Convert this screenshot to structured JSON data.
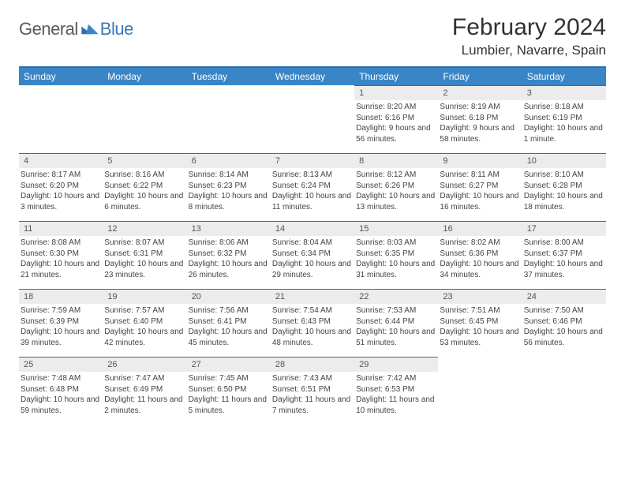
{
  "brand": {
    "part1": "General",
    "part2": "Blue"
  },
  "title": "February 2024",
  "location": "Lumbier, Navarre, Spain",
  "colors": {
    "header_bg": "#3a85c6",
    "header_text": "#ffffff",
    "rule": "#2a6fae",
    "daynum_bg": "#ececec",
    "daynum_text": "#555555",
    "cell_text": "#444444",
    "title_text": "#333333",
    "brand_gray": "#5a5a5a",
    "brand_blue": "#3a78b5"
  },
  "weekdays": [
    "Sunday",
    "Monday",
    "Tuesday",
    "Wednesday",
    "Thursday",
    "Friday",
    "Saturday"
  ],
  "weeks": [
    [
      null,
      null,
      null,
      null,
      {
        "n": "1",
        "sr": "8:20 AM",
        "ss": "6:16 PM",
        "dl": "9 hours and 56 minutes."
      },
      {
        "n": "2",
        "sr": "8:19 AM",
        "ss": "6:18 PM",
        "dl": "9 hours and 58 minutes."
      },
      {
        "n": "3",
        "sr": "8:18 AM",
        "ss": "6:19 PM",
        "dl": "10 hours and 1 minute."
      }
    ],
    [
      {
        "n": "4",
        "sr": "8:17 AM",
        "ss": "6:20 PM",
        "dl": "10 hours and 3 minutes."
      },
      {
        "n": "5",
        "sr": "8:16 AM",
        "ss": "6:22 PM",
        "dl": "10 hours and 6 minutes."
      },
      {
        "n": "6",
        "sr": "8:14 AM",
        "ss": "6:23 PM",
        "dl": "10 hours and 8 minutes."
      },
      {
        "n": "7",
        "sr": "8:13 AM",
        "ss": "6:24 PM",
        "dl": "10 hours and 11 minutes."
      },
      {
        "n": "8",
        "sr": "8:12 AM",
        "ss": "6:26 PM",
        "dl": "10 hours and 13 minutes."
      },
      {
        "n": "9",
        "sr": "8:11 AM",
        "ss": "6:27 PM",
        "dl": "10 hours and 16 minutes."
      },
      {
        "n": "10",
        "sr": "8:10 AM",
        "ss": "6:28 PM",
        "dl": "10 hours and 18 minutes."
      }
    ],
    [
      {
        "n": "11",
        "sr": "8:08 AM",
        "ss": "6:30 PM",
        "dl": "10 hours and 21 minutes."
      },
      {
        "n": "12",
        "sr": "8:07 AM",
        "ss": "6:31 PM",
        "dl": "10 hours and 23 minutes."
      },
      {
        "n": "13",
        "sr": "8:06 AM",
        "ss": "6:32 PM",
        "dl": "10 hours and 26 minutes."
      },
      {
        "n": "14",
        "sr": "8:04 AM",
        "ss": "6:34 PM",
        "dl": "10 hours and 29 minutes."
      },
      {
        "n": "15",
        "sr": "8:03 AM",
        "ss": "6:35 PM",
        "dl": "10 hours and 31 minutes."
      },
      {
        "n": "16",
        "sr": "8:02 AM",
        "ss": "6:36 PM",
        "dl": "10 hours and 34 minutes."
      },
      {
        "n": "17",
        "sr": "8:00 AM",
        "ss": "6:37 PM",
        "dl": "10 hours and 37 minutes."
      }
    ],
    [
      {
        "n": "18",
        "sr": "7:59 AM",
        "ss": "6:39 PM",
        "dl": "10 hours and 39 minutes."
      },
      {
        "n": "19",
        "sr": "7:57 AM",
        "ss": "6:40 PM",
        "dl": "10 hours and 42 minutes."
      },
      {
        "n": "20",
        "sr": "7:56 AM",
        "ss": "6:41 PM",
        "dl": "10 hours and 45 minutes."
      },
      {
        "n": "21",
        "sr": "7:54 AM",
        "ss": "6:43 PM",
        "dl": "10 hours and 48 minutes."
      },
      {
        "n": "22",
        "sr": "7:53 AM",
        "ss": "6:44 PM",
        "dl": "10 hours and 51 minutes."
      },
      {
        "n": "23",
        "sr": "7:51 AM",
        "ss": "6:45 PM",
        "dl": "10 hours and 53 minutes."
      },
      {
        "n": "24",
        "sr": "7:50 AM",
        "ss": "6:46 PM",
        "dl": "10 hours and 56 minutes."
      }
    ],
    [
      {
        "n": "25",
        "sr": "7:48 AM",
        "ss": "6:48 PM",
        "dl": "10 hours and 59 minutes."
      },
      {
        "n": "26",
        "sr": "7:47 AM",
        "ss": "6:49 PM",
        "dl": "11 hours and 2 minutes."
      },
      {
        "n": "27",
        "sr": "7:45 AM",
        "ss": "6:50 PM",
        "dl": "11 hours and 5 minutes."
      },
      {
        "n": "28",
        "sr": "7:43 AM",
        "ss": "6:51 PM",
        "dl": "11 hours and 7 minutes."
      },
      {
        "n": "29",
        "sr": "7:42 AM",
        "ss": "6:53 PM",
        "dl": "11 hours and 10 minutes."
      },
      null,
      null
    ]
  ],
  "labels": {
    "sunrise": "Sunrise:",
    "sunset": "Sunset:",
    "daylight": "Daylight:"
  }
}
